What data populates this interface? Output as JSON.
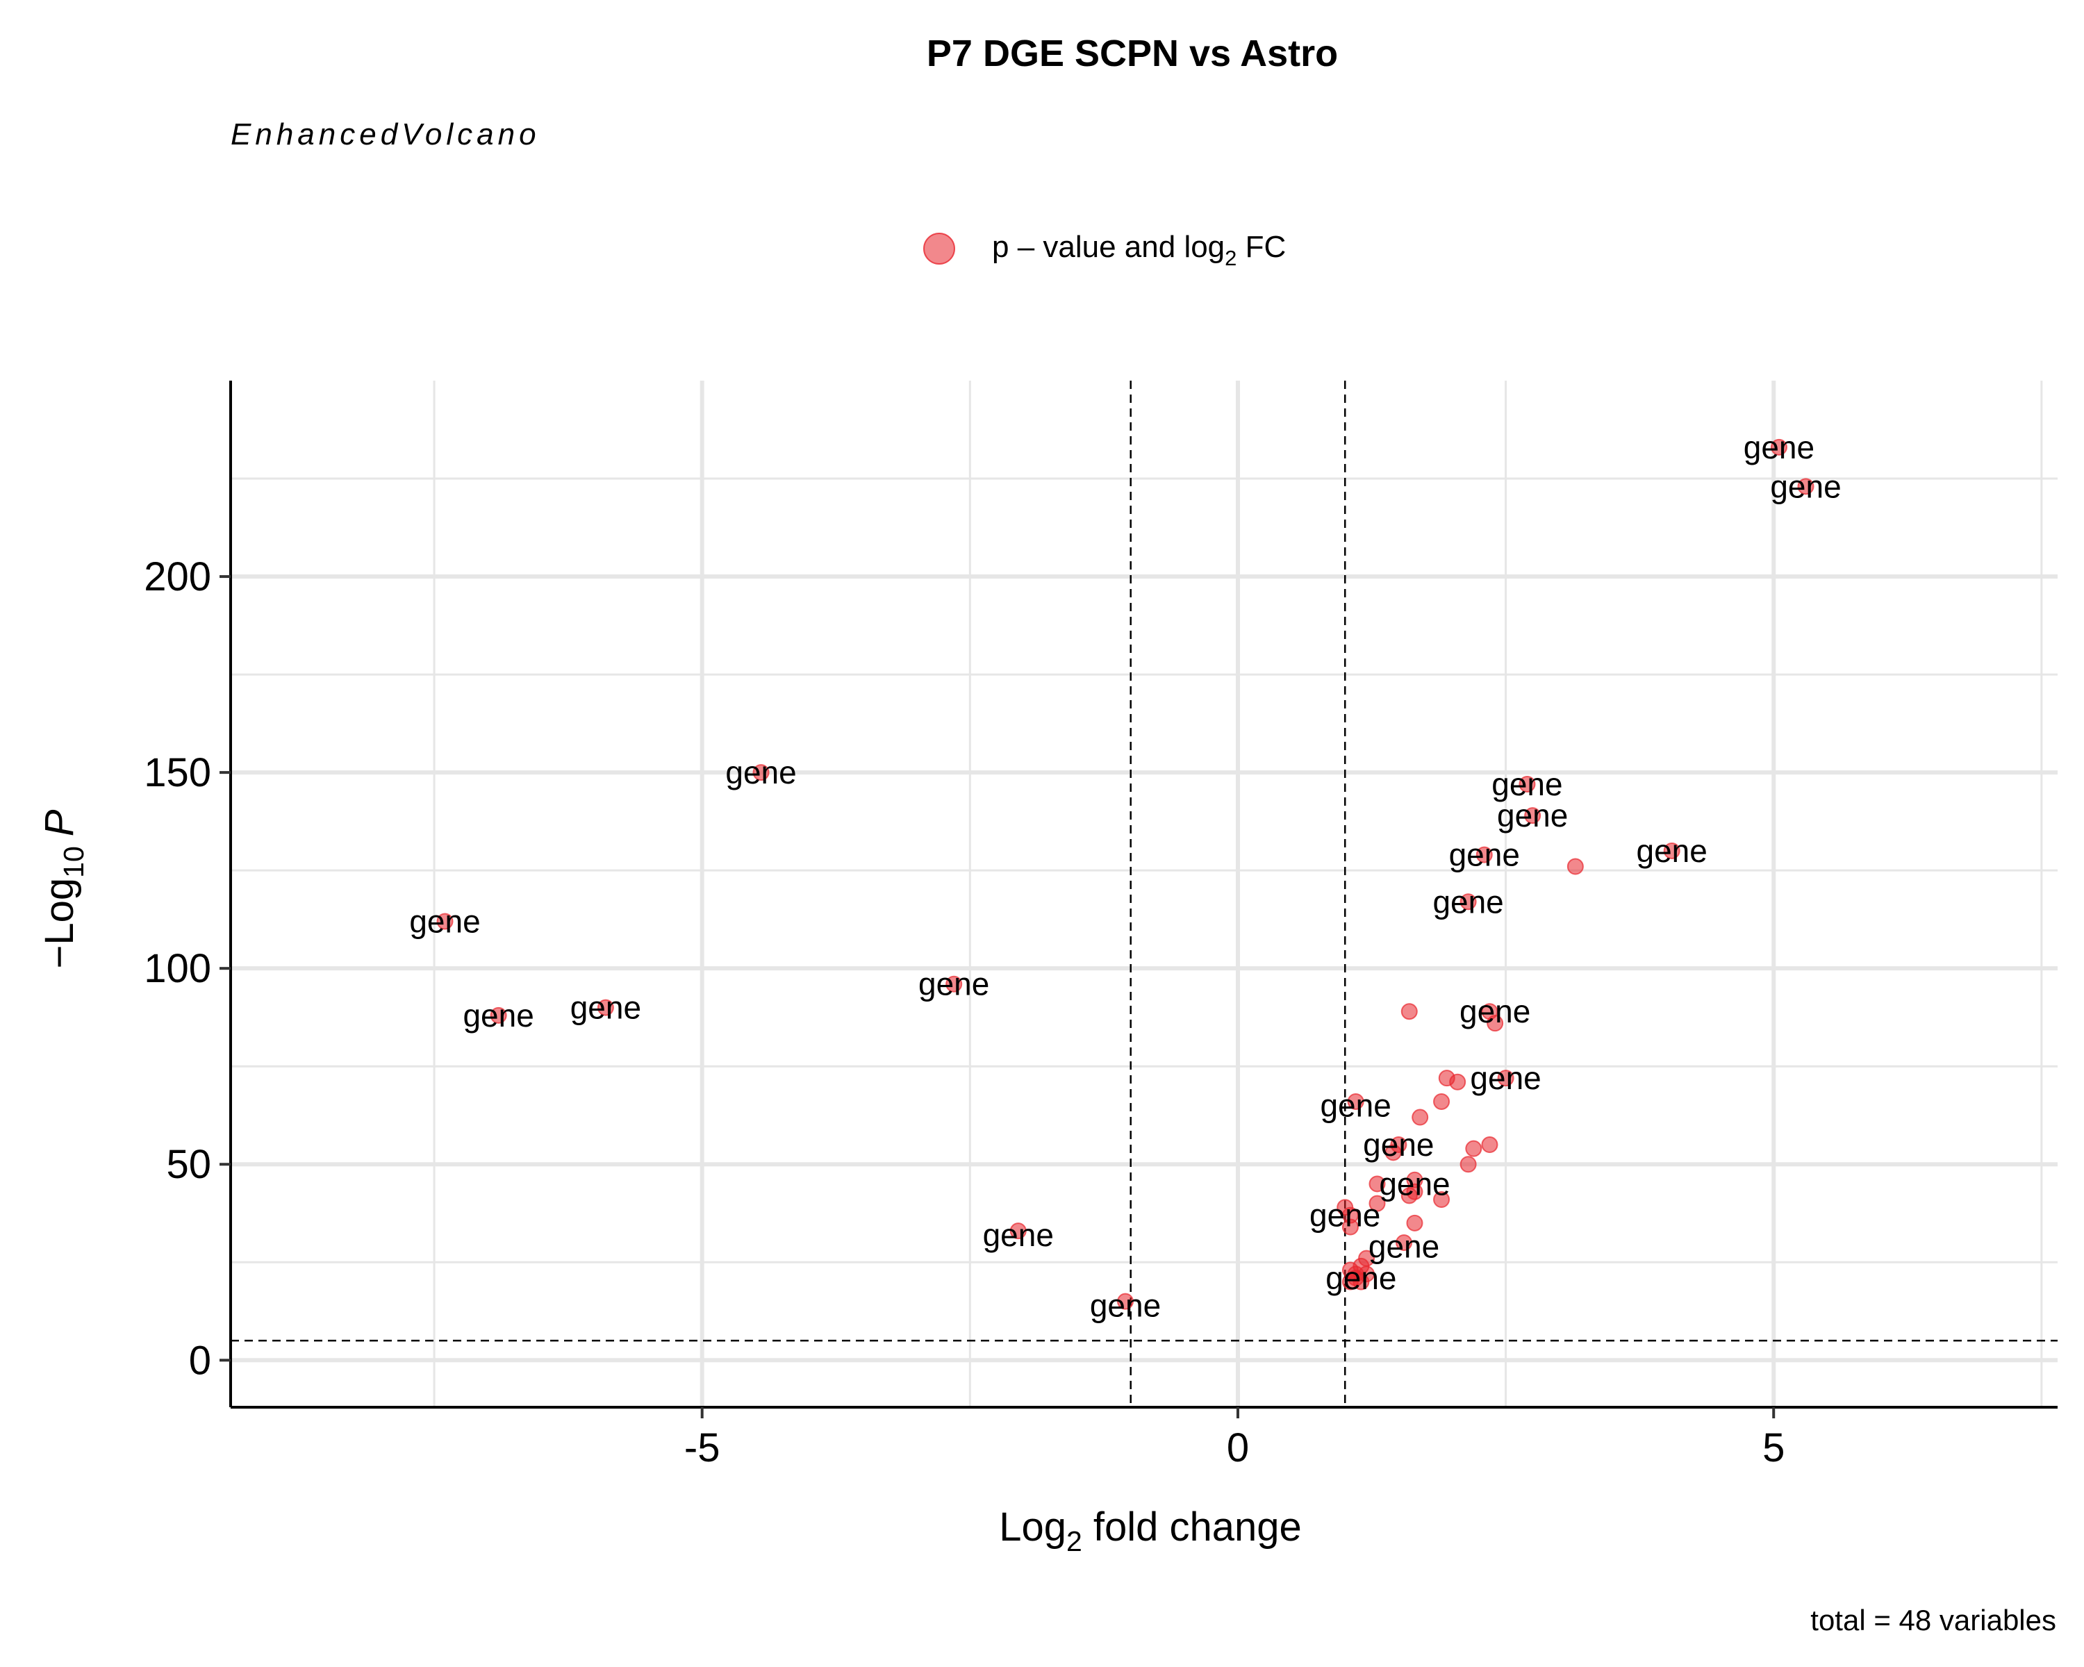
{
  "chart_data": {
    "type": "scatter",
    "title": "P7 DGE SCPN vs Astro",
    "subtitle": "EnhancedVolcano",
    "caption": "total = 48 variables",
    "xlabel_base": "Log",
    "xlabel_sub": "2",
    "xlabel_rest": " fold change",
    "ylabel_prefix": "−Log",
    "ylabel_sub": "10",
    "ylabel_italic": "P",
    "legend": {
      "placement": "top",
      "label_base": "p – value and log",
      "label_sub": "2",
      "label_rest": " FC"
    },
    "colors": {
      "point": "#e8262e",
      "grid": "#e6e6e6"
    },
    "xlim": [
      -9.4,
      7.65
    ],
    "ylim": [
      -12,
      250
    ],
    "xticks": [
      -5,
      0,
      5
    ],
    "xtick_labels": [
      "-5",
      "0",
      "5"
    ],
    "yticks": [
      0,
      50,
      100,
      150,
      200
    ],
    "ytick_labels": [
      "0",
      "50",
      "100",
      "150",
      "200"
    ],
    "x_minor_gridlines": [
      -7.5,
      -2.5,
      2.5,
      7.5
    ],
    "y_minor_gridlines": [
      25,
      75,
      125,
      175,
      225
    ],
    "thresholds": {
      "fc_cutoffs": [
        -1,
        1
      ],
      "p_cutoff": 5
    },
    "label_text": "gene",
    "points": [
      {
        "x": 5.05,
        "y": 233
      },
      {
        "x": 5.3,
        "y": 223
      },
      {
        "x": -4.45,
        "y": 150
      },
      {
        "x": 2.7,
        "y": 147
      },
      {
        "x": 2.75,
        "y": 139
      },
      {
        "x": 4.05,
        "y": 130
      },
      {
        "x": 2.3,
        "y": 129
      },
      {
        "x": 3.15,
        "y": 126
      },
      {
        "x": 2.15,
        "y": 117
      },
      {
        "x": -7.4,
        "y": 112
      },
      {
        "x": -2.65,
        "y": 96
      },
      {
        "x": -5.9,
        "y": 90
      },
      {
        "x": -6.9,
        "y": 88
      },
      {
        "x": 1.6,
        "y": 89
      },
      {
        "x": 2.35,
        "y": 89
      },
      {
        "x": 2.4,
        "y": 86
      },
      {
        "x": 1.95,
        "y": 72
      },
      {
        "x": 2.5,
        "y": 72
      },
      {
        "x": 2.05,
        "y": 71
      },
      {
        "x": 1.1,
        "y": 66
      },
      {
        "x": 1.9,
        "y": 66
      },
      {
        "x": 1.7,
        "y": 62
      },
      {
        "x": 1.5,
        "y": 55
      },
      {
        "x": 2.35,
        "y": 55
      },
      {
        "x": 1.45,
        "y": 53
      },
      {
        "x": 2.2,
        "y": 54
      },
      {
        "x": 2.15,
        "y": 50
      },
      {
        "x": 1.65,
        "y": 46
      },
      {
        "x": 1.3,
        "y": 45
      },
      {
        "x": 1.65,
        "y": 43
      },
      {
        "x": 1.6,
        "y": 42
      },
      {
        "x": 1.9,
        "y": 41
      },
      {
        "x": 1.3,
        "y": 40
      },
      {
        "x": 1.0,
        "y": 39
      },
      {
        "x": 1.05,
        "y": 37
      },
      {
        "x": -2.05,
        "y": 33
      },
      {
        "x": 1.05,
        "y": 34
      },
      {
        "x": 1.65,
        "y": 35
      },
      {
        "x": 1.55,
        "y": 30
      },
      {
        "x": 1.2,
        "y": 26
      },
      {
        "x": 1.15,
        "y": 24
      },
      {
        "x": 1.05,
        "y": 23
      },
      {
        "x": 1.1,
        "y": 22
      },
      {
        "x": 1.2,
        "y": 22
      },
      {
        "x": 1.1,
        "y": 21
      },
      {
        "x": 1.05,
        "y": 20
      },
      {
        "x": 1.15,
        "y": 20
      },
      {
        "x": -1.05,
        "y": 15
      }
    ],
    "labels": [
      {
        "x": 5.05,
        "y": 233
      },
      {
        "x": 5.3,
        "y": 223
      },
      {
        "x": -4.45,
        "y": 150
      },
      {
        "x": 2.7,
        "y": 147
      },
      {
        "x": 2.75,
        "y": 139
      },
      {
        "x": 4.05,
        "y": 130
      },
      {
        "x": 2.3,
        "y": 129
      },
      {
        "x": 2.15,
        "y": 117
      },
      {
        "x": -7.4,
        "y": 112
      },
      {
        "x": -2.65,
        "y": 96
      },
      {
        "x": -5.9,
        "y": 90
      },
      {
        "x": -6.9,
        "y": 88
      },
      {
        "x": 2.4,
        "y": 89
      },
      {
        "x": 2.5,
        "y": 72
      },
      {
        "x": 1.1,
        "y": 65
      },
      {
        "x": 1.5,
        "y": 55
      },
      {
        "x": 1.65,
        "y": 45
      },
      {
        "x": 1.0,
        "y": 37
      },
      {
        "x": -2.05,
        "y": 32
      },
      {
        "x": 1.55,
        "y": 29
      },
      {
        "x": 1.15,
        "y": 21
      },
      {
        "x": -1.05,
        "y": 14
      }
    ]
  }
}
